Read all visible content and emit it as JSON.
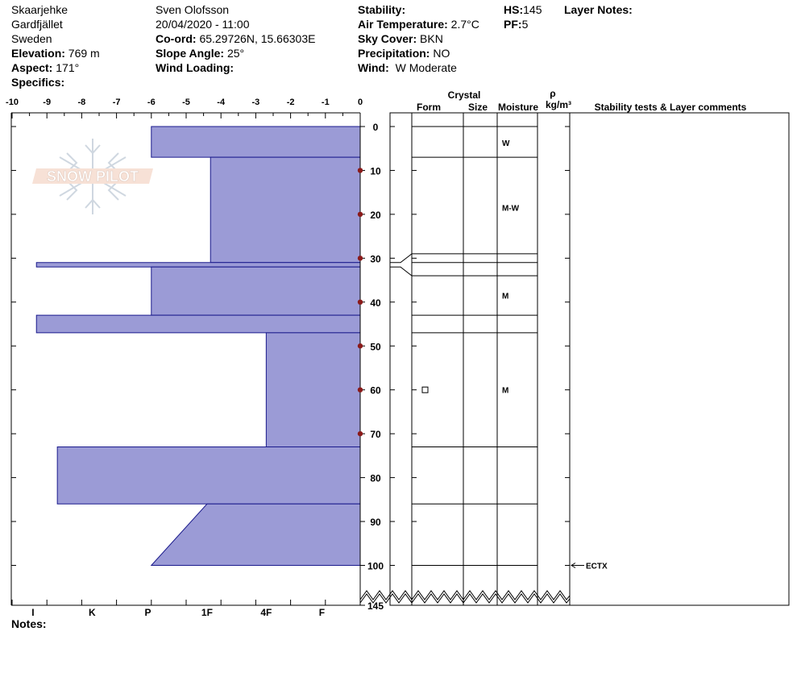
{
  "header": {
    "location": "Skaarjehke",
    "range": "Gardfjället",
    "country": "Sweden",
    "elevation_label": "Elevation:",
    "elevation": "769 m",
    "aspect_label": "Aspect:",
    "aspect": "171°",
    "specifics_label": "Specifics:",
    "observer": "Sven Olofsson",
    "datetime": "20/04/2020 - 11:00",
    "coord_label": "Co-ord:",
    "coord": "65.29726N, 15.66303E",
    "slope_label": "Slope Angle:",
    "slope": "25°",
    "wind_loading_label": "Wind Loading:",
    "stability_label": "Stability:",
    "air_temp_label": "Air Temperature:",
    "air_temp": "2.7°C",
    "sky_label": "Sky Cover:",
    "sky": "BKN",
    "precip_label": "Precipitation:",
    "precip": "NO",
    "wind_label": "Wind:",
    "wind": "W Moderate",
    "hs_label": "HS:",
    "hs": "145",
    "pf_label": "PF:",
    "pf": "5",
    "layer_notes_label": "Layer Notes:"
  },
  "notes_label": "Notes:",
  "logo_text": "SNOW PILOT",
  "columns": {
    "crystal": "Crystal",
    "form": "Form",
    "size": "Size",
    "moisture": "Moisture",
    "rho": "ρ",
    "density_unit": "kg/m³",
    "comments": "Stability tests & Layer comments"
  },
  "chart_data": {
    "type": "bar",
    "title": "",
    "xlabel": "",
    "ylabel": "",
    "temperature_axis": {
      "range": [
        -10,
        0
      ],
      "ticks": [
        "-10",
        "-9",
        "-8",
        "-7",
        "-6",
        "-5",
        "-4",
        "-3",
        "-2",
        "-1",
        "0"
      ]
    },
    "hardness_axis": {
      "labels": [
        "I",
        "K",
        "P",
        "1F",
        "4F",
        "F"
      ]
    },
    "depth_axis": {
      "range": [
        0,
        145
      ],
      "ticks": [
        "0",
        "10",
        "20",
        "30",
        "40",
        "50",
        "60",
        "70",
        "80",
        "90",
        "100",
        "145"
      ]
    },
    "temperature_profile": [
      {
        "depth": 10,
        "temp": 0
      },
      {
        "depth": 20,
        "temp": 0
      },
      {
        "depth": 30,
        "temp": 0
      },
      {
        "depth": 40,
        "temp": 0
      },
      {
        "depth": 50,
        "temp": 0
      },
      {
        "depth": 60,
        "temp": 0
      },
      {
        "depth": 70,
        "temp": 0
      }
    ],
    "hardness_profile": [
      {
        "top": 0,
        "bottom": 7,
        "width_top": 6.0,
        "width_bottom": 6.0
      },
      {
        "top": 7,
        "bottom": 31,
        "width_top": 4.3,
        "width_bottom": 4.3
      },
      {
        "top": 31,
        "bottom": 32,
        "width_top": 9.3,
        "width_bottom": 9.3
      },
      {
        "top": 32,
        "bottom": 43,
        "width_top": 6.0,
        "width_bottom": 6.0
      },
      {
        "top": 43,
        "bottom": 47,
        "width_top": 9.3,
        "width_bottom": 9.3
      },
      {
        "top": 47,
        "bottom": 73,
        "width_top": 2.7,
        "width_bottom": 2.7
      },
      {
        "top": 73,
        "bottom": 86,
        "width_top": 8.7,
        "width_bottom": 8.7
      },
      {
        "top": 86,
        "bottom": 100,
        "width_top": 4.4,
        "width_bottom": 6.0
      }
    ],
    "layer_boundaries": [
      0,
      7,
      29,
      31,
      34,
      43,
      47,
      73,
      86,
      100
    ],
    "moisture_labels": [
      {
        "depth": 3.7,
        "text": "W"
      },
      {
        "depth": 18.5,
        "text": "M-W"
      },
      {
        "depth": 38.5,
        "text": "M"
      },
      {
        "depth": 60,
        "text": "M"
      }
    ],
    "crystal_symbols": [
      {
        "depth": 60,
        "symbol": "square"
      }
    ],
    "stability_tests": [
      {
        "depth": 100,
        "text": "ECTX"
      }
    ]
  }
}
